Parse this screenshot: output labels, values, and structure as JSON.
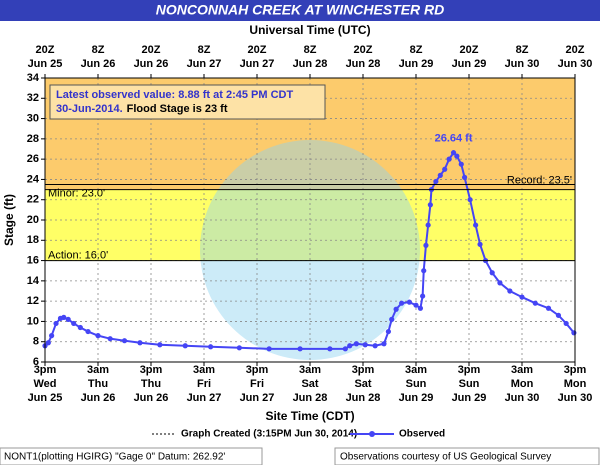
{
  "chart_data": {
    "type": "line",
    "title": "NONCONNAH CREEK AT WINCHESTER RD",
    "top_axis_label": "Universal Time (UTC)",
    "x_label": "Site Time (CDT)",
    "y_label": "Stage (ft)",
    "xlim": [
      "2014-06-25T15:00",
      "2014-06-30T15:00"
    ],
    "xticks": [
      {
        "value": "2014-06-25T15:00",
        "label": [
          "3pm",
          "Wed",
          "Jun 25"
        ]
      },
      {
        "value": "2014-06-26T03:00",
        "label": [
          "3am",
          "Thu",
          "Jun 26"
        ]
      },
      {
        "value": "2014-06-26T15:00",
        "label": [
          "3pm",
          "Thu",
          "Jun 26"
        ]
      },
      {
        "value": "2014-06-27T03:00",
        "label": [
          "3am",
          "Fri",
          "Jun 27"
        ]
      },
      {
        "value": "2014-06-27T15:00",
        "label": [
          "3pm",
          "Fri",
          "Jun 27"
        ]
      },
      {
        "value": "2014-06-28T03:00",
        "label": [
          "3am",
          "Sat",
          "Jun 28"
        ]
      },
      {
        "value": "2014-06-28T15:00",
        "label": [
          "3pm",
          "Sat",
          "Jun 28"
        ]
      },
      {
        "value": "2014-06-29T03:00",
        "label": [
          "3am",
          "Sun",
          "Jun 29"
        ]
      },
      {
        "value": "2014-06-29T15:00",
        "label": [
          "3pm",
          "Sun",
          "Jun 29"
        ]
      },
      {
        "value": "2014-06-30T03:00",
        "label": [
          "3am",
          "Mon",
          "Jun 30"
        ]
      },
      {
        "value": "2014-06-30T15:00",
        "label": [
          "3pm",
          "Mon",
          "Jun 30"
        ]
      }
    ],
    "x2ticks": [
      {
        "value": "2014-06-25T15:00",
        "label": [
          "20Z",
          "Jun 25"
        ]
      },
      {
        "value": "2014-06-26T03:00",
        "label": [
          "8Z",
          "Jun 26"
        ]
      },
      {
        "value": "2014-06-26T15:00",
        "label": [
          "20Z",
          "Jun 26"
        ]
      },
      {
        "value": "2014-06-27T03:00",
        "label": [
          "8Z",
          "Jun 27"
        ]
      },
      {
        "value": "2014-06-27T15:00",
        "label": [
          "20Z",
          "Jun 27"
        ]
      },
      {
        "value": "2014-06-28T03:00",
        "label": [
          "8Z",
          "Jun 28"
        ]
      },
      {
        "value": "2014-06-28T15:00",
        "label": [
          "20Z",
          "Jun 28"
        ]
      },
      {
        "value": "2014-06-29T03:00",
        "label": [
          "8Z",
          "Jun 29"
        ]
      },
      {
        "value": "2014-06-29T15:00",
        "label": [
          "20Z",
          "Jun 29"
        ]
      },
      {
        "value": "2014-06-30T03:00",
        "label": [
          "8Z",
          "Jun 30"
        ]
      },
      {
        "value": "2014-06-30T15:00",
        "label": [
          "20Z",
          "Jun 30"
        ]
      }
    ],
    "ylim": [
      6,
      34
    ],
    "yticks": [
      6,
      8,
      10,
      12,
      14,
      16,
      18,
      20,
      22,
      24,
      26,
      28,
      30,
      32,
      34
    ],
    "grid": true,
    "x": [
      "2014-06-25T15:00",
      "2014-06-25T15:45",
      "2014-06-25T16:30",
      "2014-06-25T17:30",
      "2014-06-25T18:30",
      "2014-06-25T19:15",
      "2014-06-25T20:15",
      "2014-06-25T21:30",
      "2014-06-25T23:00",
      "2014-06-26T00:45",
      "2014-06-26T03:00",
      "2014-06-26T05:45",
      "2014-06-26T09:00",
      "2014-06-26T12:30",
      "2014-06-26T17:00",
      "2014-06-26T22:45",
      "2014-06-27T04:30",
      "2014-06-27T11:00",
      "2014-06-27T17:45",
      "2014-06-28T00:45",
      "2014-06-28T07:30",
      "2014-06-28T11:00",
      "2014-06-28T12:00",
      "2014-06-28T13:30",
      "2014-06-28T15:30",
      "2014-06-28T17:45",
      "2014-06-28T19:45",
      "2014-06-28T20:45",
      "2014-06-28T21:30",
      "2014-06-28T22:30",
      "2014-06-28T23:45",
      "2014-06-29T01:30",
      "2014-06-29T03:00",
      "2014-06-29T04:00",
      "2014-06-29T04:30",
      "2014-06-29T04:45",
      "2014-06-29T05:15",
      "2014-06-29T05:45",
      "2014-06-29T06:15",
      "2014-06-29T06:30",
      "2014-06-29T07:30",
      "2014-06-29T08:30",
      "2014-06-29T09:30",
      "2014-06-29T10:30",
      "2014-06-29T11:30",
      "2014-06-29T12:15",
      "2014-06-29T13:15",
      "2014-06-29T14:00",
      "2014-06-29T15:15",
      "2014-06-29T16:30",
      "2014-06-29T17:30",
      "2014-06-29T18:45",
      "2014-06-29T20:15",
      "2014-06-29T22:00",
      "2014-06-30T00:15",
      "2014-06-30T03:00",
      "2014-06-30T06:00",
      "2014-06-30T09:00",
      "2014-06-30T11:15",
      "2014-06-30T13:00",
      "2014-06-30T14:45"
    ],
    "series": [
      {
        "name": "Observed",
        "color": "#4545f5",
        "values": [
          7.6,
          7.9,
          8.6,
          9.8,
          10.3,
          10.4,
          10.2,
          9.8,
          9.4,
          9.0,
          8.6,
          8.3,
          8.1,
          7.9,
          7.7,
          7.6,
          7.5,
          7.4,
          7.3,
          7.3,
          7.3,
          7.3,
          7.6,
          7.8,
          7.7,
          7.6,
          7.8,
          9.0,
          10.2,
          11.2,
          11.8,
          11.9,
          11.6,
          11.3,
          12.5,
          15.0,
          17.5,
          19.5,
          21.5,
          23.0,
          23.8,
          24.4,
          25.0,
          26.0,
          26.64,
          26.3,
          25.5,
          24.2,
          22.0,
          19.5,
          17.6,
          16.0,
          14.8,
          13.8,
          13.0,
          12.4,
          11.8,
          11.3,
          10.6,
          9.8,
          8.88
        ]
      }
    ],
    "thresholds": [
      {
        "label": "Action: 16.0'",
        "value": 16,
        "band_color": "#ffff66",
        "side": "left"
      },
      {
        "label": "Minor: 23.0'",
        "value": 23,
        "band_color": "#fccb6c",
        "side": "left"
      },
      {
        "label": "Record: 23.5'",
        "value": 23.5,
        "side": "right"
      }
    ],
    "annotation": {
      "text": "26.64 ft",
      "x": "2014-06-29T11:30",
      "y": 26.64,
      "color": "#4545f5"
    },
    "info": {
      "line1": "Latest observed value: 8.88 ft at 2:45 PM CDT",
      "date": "30-Jun-2014.",
      "flood_stage": "Flood Stage is 23 ft"
    },
    "graph_created": "Graph Created (3:15PM Jun 30, 2014)",
    "footer_left": "NONT1(plotting HGIRG) \"Gage 0\" Datum: 262.92'",
    "footer_right": "Observations courtesy of US Geological Survey"
  }
}
